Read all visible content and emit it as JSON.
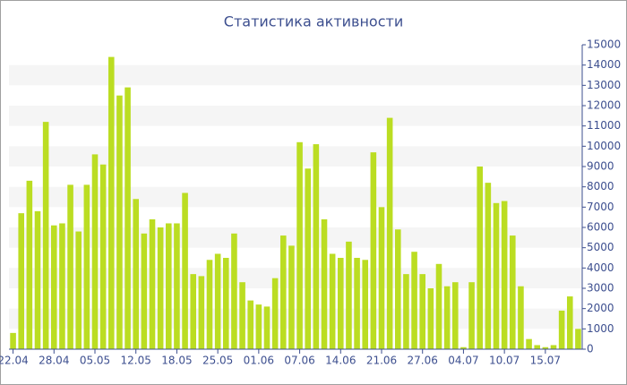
{
  "chart_data": {
    "type": "bar",
    "title": "Статистика активности",
    "categories": [
      "22.04",
      null,
      null,
      null,
      null,
      "28.04",
      null,
      null,
      null,
      null,
      "05.05",
      null,
      null,
      null,
      null,
      "12.05",
      null,
      null,
      null,
      null,
      "18.05",
      null,
      null,
      null,
      null,
      "25.05",
      null,
      null,
      null,
      null,
      "01.06",
      null,
      null,
      null,
      null,
      "07.06",
      null,
      null,
      null,
      null,
      "14.06",
      null,
      null,
      null,
      null,
      "21.06",
      null,
      null,
      null,
      null,
      "27.06",
      null,
      null,
      null,
      null,
      "04.07",
      null,
      null,
      null,
      null,
      "10.07",
      null,
      null,
      null,
      null,
      "15.07",
      null,
      null,
      null,
      null
    ],
    "values": [
      800,
      6700,
      8300,
      6800,
      11200,
      6100,
      6200,
      8100,
      5800,
      8100,
      9600,
      9100,
      14400,
      12500,
      12900,
      7400,
      5700,
      6400,
      6000,
      6200,
      6200,
      7700,
      3700,
      3600,
      4400,
      4700,
      4500,
      5700,
      3300,
      2400,
      2200,
      2100,
      3500,
      5600,
      5100,
      10200,
      8900,
      10100,
      6400,
      4700,
      4500,
      5300,
      4500,
      4400,
      9700,
      7000,
      11400,
      5900,
      3700,
      4800,
      3700,
      3000,
      4200,
      3100,
      3300,
      100,
      3300,
      9000,
      8200,
      7200,
      7300,
      5600,
      3100,
      500,
      200,
      100,
      200,
      1900,
      2600,
      1000
    ],
    "color": "#bbdd22",
    "ylim": [
      0,
      15000
    ],
    "yticks": [
      0,
      1000,
      2000,
      3000,
      4000,
      5000,
      6000,
      7000,
      8000,
      9000,
      10000,
      11000,
      12000,
      13000,
      14000,
      15000
    ],
    "grid": true
  }
}
